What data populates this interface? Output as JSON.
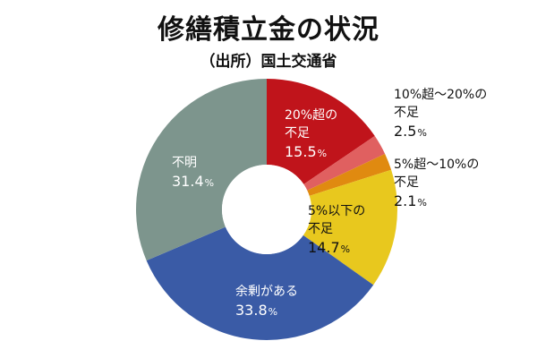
{
  "header": {
    "title": "修繕積立金の状況",
    "subtitle": "（出所）国土交通省"
  },
  "chart_data": {
    "type": "pie",
    "title": "修繕積立金の状況",
    "subtitle": "（出所）国土交通省",
    "unit": "%",
    "slices": [
      {
        "label": "20%超の不足",
        "label_lines": [
          "20%超の",
          "不足"
        ],
        "value": 15.5,
        "color": "#c0141b",
        "label_color": "#ffffff"
      },
      {
        "label": "10%超〜20%の不足",
        "label_lines": [
          "10%超〜20%の",
          "不足"
        ],
        "value": 2.5,
        "color": "#e06060",
        "label_color": "#111111"
      },
      {
        "label": "5%超〜10%の不足",
        "label_lines": [
          "5%超〜10%の",
          "不足"
        ],
        "value": 2.1,
        "color": "#e08a10",
        "label_color": "#111111"
      },
      {
        "label": "5%以下の不足",
        "label_lines": [
          "5%以下の",
          "不足"
        ],
        "value": 14.7,
        "color": "#e8c81e",
        "label_color": "#111111"
      },
      {
        "label": "余剰がある",
        "label_lines": [
          "余剰がある"
        ],
        "value": 33.8,
        "color": "#3a5ba6",
        "label_color": "#ffffff"
      },
      {
        "label": "不明",
        "label_lines": [
          "不明"
        ],
        "value": 31.4,
        "color": "#7d958d",
        "label_color": "#ffffff"
      }
    ]
  }
}
